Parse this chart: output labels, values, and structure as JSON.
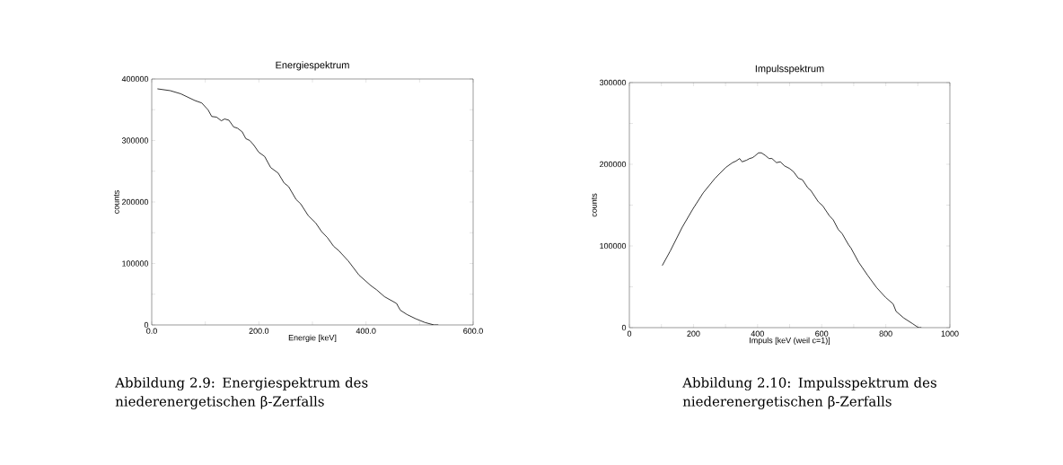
{
  "chart_data": [
    {
      "type": "line",
      "title": "Energiespektrum",
      "xlabel": "Energie [keV]",
      "ylabel": "counts",
      "color": "#000000",
      "x": [
        10.6,
        34.7,
        54,
        80.5,
        93.4,
        101.8,
        105,
        112,
        121,
        130,
        136,
        144,
        153,
        160,
        169,
        175.6,
        183,
        191,
        199.6,
        210.8,
        222,
        236,
        247,
        255.5,
        269.5,
        278,
        292,
        306,
        317,
        328,
        339.5,
        349,
        367,
        387,
        409,
        420,
        434.5,
        457,
        464,
        476.5,
        493,
        510,
        527,
        535
      ],
      "values": [
        384000,
        381000,
        376000,
        365000,
        361000,
        353000,
        350000,
        339000,
        338000,
        332000,
        335000,
        333000,
        322000,
        320000,
        314000,
        303000,
        300000,
        292000,
        281000,
        274000,
        256000,
        247000,
        231000,
        225000,
        204000,
        197000,
        178000,
        166000,
        152000,
        142000,
        128000,
        121000,
        104000,
        81000,
        64000,
        57000,
        46000,
        35000,
        24000,
        17000,
        10000,
        4000,
        0,
        0
      ],
      "xlim": [
        0,
        600
      ],
      "ylim": [
        0,
        400000
      ],
      "xticks": [
        {
          "value": 0,
          "label": "0.0"
        },
        {
          "value": 100,
          "label": null
        },
        {
          "value": 200,
          "label": "200.0"
        },
        {
          "value": 300,
          "label": null
        },
        {
          "value": 400,
          "label": "400.0"
        },
        {
          "value": 500,
          "label": null
        },
        {
          "value": 600,
          "label": "600.0"
        }
      ],
      "yticks": [
        0,
        {
          "value": 50000,
          "label": null
        },
        100000,
        {
          "value": 150000,
          "label": null
        },
        200000,
        {
          "value": 250000,
          "label": null
        },
        300000,
        {
          "value": 350000,
          "label": null
        },
        400000
      ],
      "annotations": [
        "Abbildung 2.9: Energiespektrum des niederenergetischen β-Zerfalls"
      ]
    },
    {
      "type": "line",
      "title": "Impulsspektrum",
      "xlabel": "Impuls [keV (weil c=1)]",
      "ylabel": "counts",
      "color": "#000000",
      "x": [
        102.6,
        127.8,
        165,
        197.8,
        230.4,
        267.7,
        300.4,
        321.8,
        333,
        344,
        351.7,
        365.7,
        375,
        384,
        391,
        403,
        412,
        423.5,
        435.6,
        445,
        459,
        471,
        484,
        499,
        512,
        527,
        540,
        557,
        566,
        589.6,
        603.5,
        624,
        636,
        652,
        664,
        683,
        692,
        715.5,
        743.5,
        771.5,
        799.5,
        823,
        832,
        855.5,
        883,
        902,
        911
      ],
      "values": [
        76000,
        94000,
        123000,
        145000,
        165000,
        183000,
        196000,
        202000,
        204000,
        207000,
        203000,
        205000,
        207000,
        208000,
        210000,
        214000,
        214000,
        211000,
        207000,
        207000,
        202000,
        203000,
        198000,
        195000,
        191000,
        183000,
        181000,
        171000,
        168000,
        154000,
        149000,
        137000,
        132000,
        120000,
        115000,
        102000,
        97000,
        80000,
        64000,
        49000,
        37000,
        29000,
        20000,
        12000,
        5000,
        0,
        0
      ],
      "xlim": [
        0,
        1000
      ],
      "ylim": [
        0,
        300000
      ],
      "xticks": [
        0,
        {
          "value": 100,
          "label": null
        },
        200,
        {
          "value": 300,
          "label": null
        },
        400,
        {
          "value": 500,
          "label": null
        },
        600,
        {
          "value": 700,
          "label": null
        },
        800,
        {
          "value": 900,
          "label": null
        },
        1000
      ],
      "yticks": [
        0,
        {
          "value": 50000,
          "label": null
        },
        100000,
        {
          "value": 150000,
          "label": null
        },
        200000,
        {
          "value": 250000,
          "label": null
        },
        300000
      ],
      "annotations": [
        "Abbildung 2.10: Impulsspektrum des niederenergetischen β-Zerfalls"
      ]
    }
  ]
}
